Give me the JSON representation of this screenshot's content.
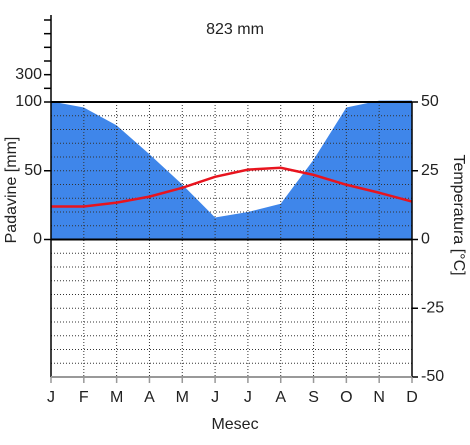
{
  "chart_data": {
    "type": "climate",
    "title": "823 mm",
    "categories": [
      "J",
      "F",
      "M",
      "A",
      "M",
      "J",
      "J",
      "A",
      "S",
      "O",
      "N",
      "D"
    ],
    "x_label": "Mesec",
    "y_label": "Padavine [mm]",
    "y2_label": "Temperatura [°C]",
    "series": [
      {
        "color": "#3f86ea",
        "values": [
          105,
          96,
          83,
          62,
          40,
          16,
          20,
          26,
          58,
          96,
          110,
          111
        ]
      },
      {
        "color": "#e8141e",
        "axis": "y2",
        "values": [
          12,
          12,
          13.4,
          15.6,
          18.8,
          22.8,
          25.4,
          26.1,
          23.5,
          19.9,
          17,
          13.8
        ]
      }
    ],
    "ylim": [
      -100,
      700
    ],
    "yticks": [
      0,
      50,
      100,
      300
    ],
    "yticks_minor": [
      200,
      400,
      500,
      600,
      700
    ],
    "compress_above": 100,
    "y2lim": [
      -50,
      50
    ],
    "y2ticks": [
      50,
      25,
      0,
      -25,
      -50
    ],
    "y2_grid": [
      -45,
      -40,
      -35,
      -30,
      -25,
      -20,
      -15,
      -10,
      -5,
      5,
      10,
      15,
      20,
      25,
      30,
      35,
      40,
      45
    ],
    "grid": true
  }
}
